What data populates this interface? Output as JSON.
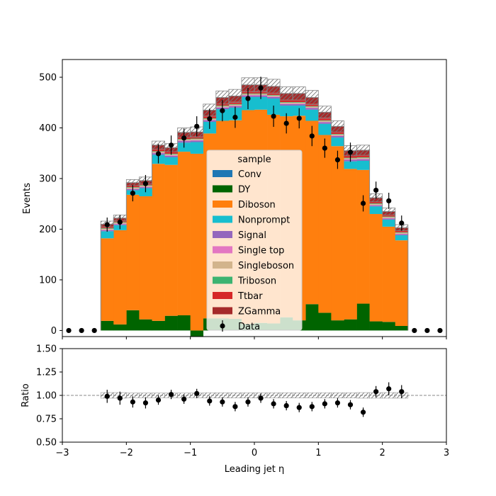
{
  "chart_data": [
    {
      "type": "stacked-histogram",
      "panel": "main",
      "ylabel": "Events",
      "xlim": [
        -3,
        3
      ],
      "ylim": [
        -12,
        535
      ],
      "yticks": [
        0,
        100,
        200,
        300,
        400,
        500
      ],
      "bin_edges": [
        -2.4,
        -2.2,
        -2.0,
        -1.8,
        -1.6,
        -1.4,
        -1.2,
        -1.0,
        -0.8,
        -0.6,
        -0.4,
        -0.2,
        0.0,
        0.2,
        0.4,
        0.6,
        0.8,
        1.0,
        1.2,
        1.4,
        1.6,
        1.8,
        2.0,
        2.2,
        2.4
      ],
      "legend": {
        "title": "sample",
        "placement": "center"
      },
      "series": [
        {
          "name": "Conv",
          "color": "#1f77b4",
          "values": [
            0,
            0,
            0,
            0,
            0,
            0,
            0,
            0,
            0,
            0,
            0,
            0,
            0,
            0,
            0,
            0,
            0,
            0,
            0,
            0,
            0,
            0,
            0,
            0
          ]
        },
        {
          "name": "DY",
          "color": "#006400",
          "values": [
            19,
            12,
            40,
            22,
            19,
            29,
            30,
            -12,
            24,
            24,
            23,
            13,
            15,
            14,
            26,
            20,
            52,
            35,
            20,
            22,
            53,
            18,
            17,
            9
          ]
        },
        {
          "name": "Diboson",
          "color": "#ff7f0e",
          "values": [
            163,
            186,
            228,
            243,
            310,
            298,
            323,
            349,
            365,
            390,
            392,
            422,
            421,
            412,
            397,
            404,
            362,
            351,
            344,
            297,
            264,
            212,
            188,
            169
          ]
        },
        {
          "name": "Nonprompt",
          "color": "#17becf",
          "values": [
            14,
            10,
            9,
            16,
            18,
            15,
            18,
            23,
            23,
            23,
            25,
            26,
            25,
            32,
            21,
            20,
            22,
            22,
            17,
            15,
            18,
            15,
            14,
            10
          ]
        },
        {
          "name": "Signal",
          "color": "#9467bd",
          "values": [
            2,
            2,
            2,
            2,
            3,
            3,
            3,
            3,
            3,
            3,
            3,
            3,
            3,
            3,
            3,
            3,
            3,
            3,
            3,
            3,
            3,
            2,
            2,
            2
          ]
        },
        {
          "name": "Single top",
          "color": "#e377c2",
          "values": [
            1,
            1,
            1,
            1,
            1,
            1,
            1,
            1,
            1,
            1,
            1,
            1,
            1,
            1,
            1,
            1,
            1,
            1,
            1,
            1,
            1,
            1,
            1,
            1
          ]
        },
        {
          "name": "Singleboson",
          "color": "#d2b48c",
          "values": [
            2,
            2,
            2,
            2,
            2,
            2,
            2,
            2,
            2,
            2,
            2,
            2,
            2,
            2,
            2,
            2,
            2,
            2,
            2,
            2,
            2,
            2,
            2,
            2
          ]
        },
        {
          "name": "Triboson",
          "color": "#3cb371",
          "values": [
            1,
            1,
            1,
            1,
            1,
            1,
            1,
            1,
            1,
            1,
            1,
            1,
            1,
            1,
            1,
            1,
            1,
            1,
            1,
            1,
            1,
            1,
            1,
            1
          ]
        },
        {
          "name": "Ttbar",
          "color": "#d62728",
          "values": [
            3,
            3,
            3,
            3,
            4,
            4,
            4,
            4,
            5,
            5,
            5,
            5,
            5,
            5,
            5,
            5,
            5,
            5,
            4,
            4,
            4,
            3,
            3,
            3
          ]
        },
        {
          "name": "ZGamma",
          "color": "#a52a2a",
          "values": [
            5,
            5,
            6,
            6,
            8,
            8,
            9,
            9,
            11,
            11,
            11,
            12,
            12,
            12,
            12,
            12,
            12,
            11,
            11,
            10,
            10,
            8,
            7,
            6
          ]
        }
      ],
      "uncertainty": {
        "values": [
          6,
          6,
          6,
          7,
          8,
          8,
          9,
          10,
          12,
          13,
          13,
          14,
          14,
          14,
          13,
          13,
          14,
          12,
          11,
          10,
          10,
          8,
          7,
          6
        ],
        "hatch": "////"
      },
      "data": {
        "name": "Data",
        "x": [
          -2.9,
          -2.7,
          -2.5,
          -2.3,
          -2.1,
          -1.9,
          -1.7,
          -1.5,
          -1.3,
          -1.1,
          -0.9,
          -0.7,
          -0.5,
          -0.3,
          -0.1,
          0.1,
          0.3,
          0.5,
          0.7,
          0.9,
          1.1,
          1.3,
          1.5,
          1.7,
          1.9,
          2.1,
          2.3,
          2.5,
          2.7,
          2.9
        ],
        "y": [
          0,
          0,
          0,
          209,
          214,
          271,
          290,
          349,
          366,
          380,
          403,
          418,
          434,
          421,
          458,
          479,
          423,
          409,
          419,
          384,
          360,
          337,
          352,
          251,
          277,
          256,
          212,
          0,
          0,
          0
        ],
        "err": [
          0,
          0,
          0,
          14,
          14,
          16,
          17,
          19,
          19,
          19,
          20,
          20,
          21,
          21,
          21,
          22,
          21,
          20,
          20,
          20,
          19,
          18,
          19,
          16,
          17,
          16,
          15,
          0,
          0,
          0
        ]
      }
    },
    {
      "type": "ratio",
      "panel": "ratio",
      "ylabel": "Ratio",
      "xlabel": "Leading jet  η",
      "xlim": [
        -3,
        3
      ],
      "ylim": [
        0.5,
        1.5
      ],
      "yticks": [
        "0.50",
        "0.75",
        "1.00",
        "1.25",
        "1.50"
      ],
      "xticks": [
        "−3",
        "−2",
        "−1",
        "0",
        "1",
        "2",
        "3"
      ],
      "reference": 1.0,
      "band_rel": [
        0.03,
        0.03,
        0.025,
        0.025,
        0.025,
        0.025,
        0.025,
        0.025,
        0.028,
        0.028,
        0.028,
        0.028,
        0.028,
        0.028,
        0.028,
        0.028,
        0.028,
        0.028,
        0.028,
        0.028,
        0.03,
        0.03,
        0.03,
        0.03
      ],
      "points": {
        "x": [
          -2.3,
          -2.1,
          -1.9,
          -1.7,
          -1.5,
          -1.3,
          -1.1,
          -0.9,
          -0.7,
          -0.5,
          -0.3,
          -0.1,
          0.1,
          0.3,
          0.5,
          0.7,
          0.9,
          1.1,
          1.3,
          1.5,
          1.7,
          1.9,
          2.1,
          2.3
        ],
        "y": [
          0.99,
          0.97,
          0.93,
          0.92,
          0.95,
          1.01,
          0.96,
          1.02,
          0.94,
          0.93,
          0.88,
          0.93,
          0.97,
          0.91,
          0.89,
          0.87,
          0.88,
          0.91,
          0.92,
          0.9,
          0.82,
          1.04,
          1.07,
          1.04
        ],
        "err": [
          0.07,
          0.07,
          0.06,
          0.06,
          0.05,
          0.05,
          0.05,
          0.05,
          0.05,
          0.05,
          0.05,
          0.05,
          0.05,
          0.05,
          0.05,
          0.05,
          0.05,
          0.05,
          0.05,
          0.05,
          0.05,
          0.06,
          0.07,
          0.07
        ]
      }
    }
  ]
}
